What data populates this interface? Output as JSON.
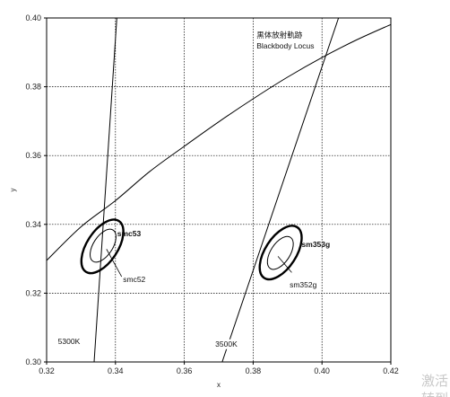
{
  "chart_data": {
    "type": "line",
    "xlabel": "x",
    "ylabel": "y",
    "xlim": [
      0.32,
      0.42
    ],
    "ylim": [
      0.3,
      0.4
    ],
    "x_ticks": [
      "0.32",
      "0.34",
      "0.36",
      "0.38",
      "0.40",
      "0.42"
    ],
    "y_ticks": [
      "0.30",
      "0.32",
      "0.34",
      "0.36",
      "0.38",
      "0.40"
    ],
    "grid": true,
    "legend_text": {
      "line1": "黒体放射軌跡",
      "line2": "Blackbody Locus"
    },
    "blackbody_locus": {
      "x": [
        0.32,
        0.33,
        0.34,
        0.35,
        0.36,
        0.37,
        0.38,
        0.39,
        0.4,
        0.41,
        0.42
      ],
      "y": [
        0.3295,
        0.3393,
        0.3469,
        0.3554,
        0.3627,
        0.3698,
        0.3765,
        0.3828,
        0.3885,
        0.3936,
        0.3981
      ]
    },
    "isotemperature_lines": [
      {
        "label": "5300K",
        "x": [
          0.3338,
          0.3404
        ],
        "y": [
          0.3,
          0.4
        ]
      },
      {
        "label": "3500K",
        "x": [
          0.371,
          0.4048
        ],
        "y": [
          0.3,
          0.4
        ]
      }
    ],
    "ellipses": [
      {
        "label": "smc53",
        "bold": true,
        "cx": 0.3362,
        "cy": 0.3336,
        "rx": 0.0045,
        "ry": 0.0088,
        "tilt_deg": 33
      },
      {
        "label": "smc52",
        "bold": false,
        "cx": 0.3364,
        "cy": 0.3338,
        "rx": 0.0028,
        "ry": 0.0054,
        "tilt_deg": 33
      },
      {
        "label": "sm353g",
        "bold": true,
        "cx": 0.388,
        "cy": 0.3318,
        "rx": 0.0045,
        "ry": 0.0088,
        "tilt_deg": 33
      },
      {
        "label": "sm352g",
        "bold": false,
        "cx": 0.3879,
        "cy": 0.3317,
        "rx": 0.0028,
        "ry": 0.0054,
        "tilt_deg": 33
      }
    ],
    "annotations": [
      {
        "text": "smc53",
        "bold": true,
        "x": 0.3405,
        "y": 0.3365
      },
      {
        "text": "smc52",
        "bold": false,
        "x": 0.3422,
        "y": 0.3232,
        "leader": [
          0.3374,
          0.3328,
          0.3418,
          0.3248
        ]
      },
      {
        "text": "sm353g",
        "bold": true,
        "x": 0.3941,
        "y": 0.3334
      },
      {
        "text": "sm352g",
        "bold": false,
        "x": 0.3906,
        "y": 0.3217,
        "leader": [
          0.3872,
          0.3307,
          0.3912,
          0.326
        ]
      },
      {
        "text": "5300K",
        "bold": false,
        "x": 0.3233,
        "y": 0.3052
      },
      {
        "text": "3500K",
        "bold": false,
        "x": 0.369,
        "y": 0.3045
      }
    ]
  },
  "corner_text": {
    "line1": "激活",
    "line2": "转到"
  }
}
